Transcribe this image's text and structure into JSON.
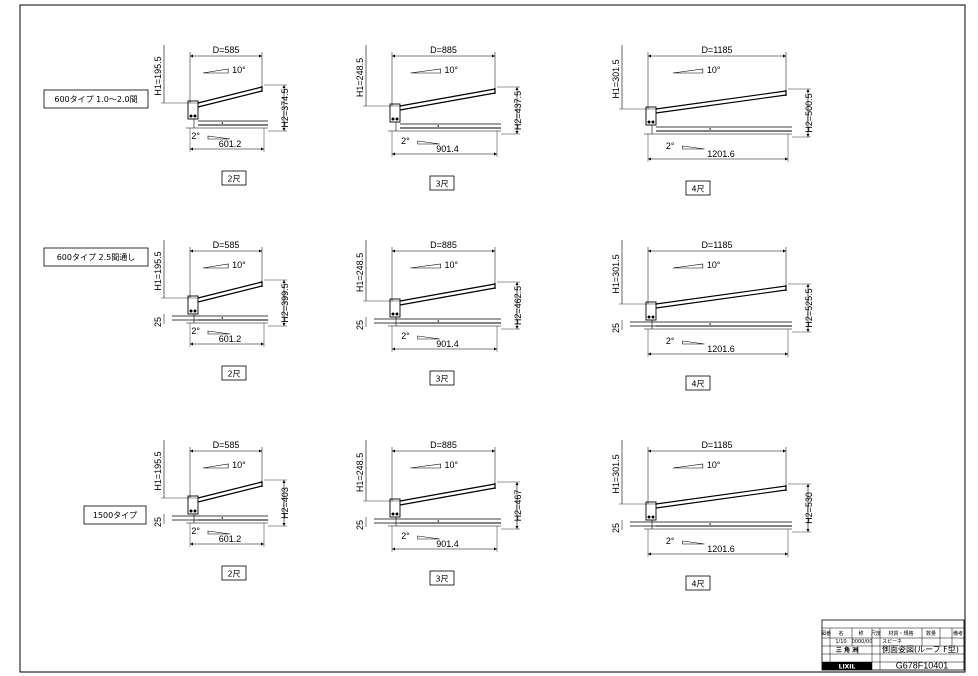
{
  "row_labels": [
    "600タイプ 1.0〜2.0間",
    "600タイプ 2.5間通し",
    "1500タイプ"
  ],
  "columns": [
    {
      "size": "2尺",
      "d": "D=585",
      "h1": "H1=195.5",
      "w": "601.2"
    },
    {
      "size": "3尺",
      "d": "D=885",
      "h1": "H1=248.5",
      "w": "901.4"
    },
    {
      "size": "4尺",
      "d": "D=1185",
      "h1": "H1=301.5",
      "w": "1201.6"
    }
  ],
  "h2": [
    [
      "H2=374.5",
      "H2=437.5",
      "H2=500.5"
    ],
    [
      "H2=399.5",
      "H2=462.5",
      "H2=525.5"
    ],
    [
      "H2=403",
      "H2=467",
      "H2=530"
    ]
  ],
  "offset_label": "25",
  "roof_slope": "10°",
  "base_slope": "2°",
  "title_block": {
    "header_cells": [
      "図番",
      "名",
      "称",
      "尺度",
      "材質・規格",
      "数量",
      "備考"
    ],
    "scale": "1/10",
    "date": "0000/00",
    "maker_jp": "三 角 洲",
    "company": "LIXIL",
    "product": "スピーネ",
    "drawing_title": "側面姿図(ルーフ F型)",
    "drawing_number": "G678F10401"
  }
}
